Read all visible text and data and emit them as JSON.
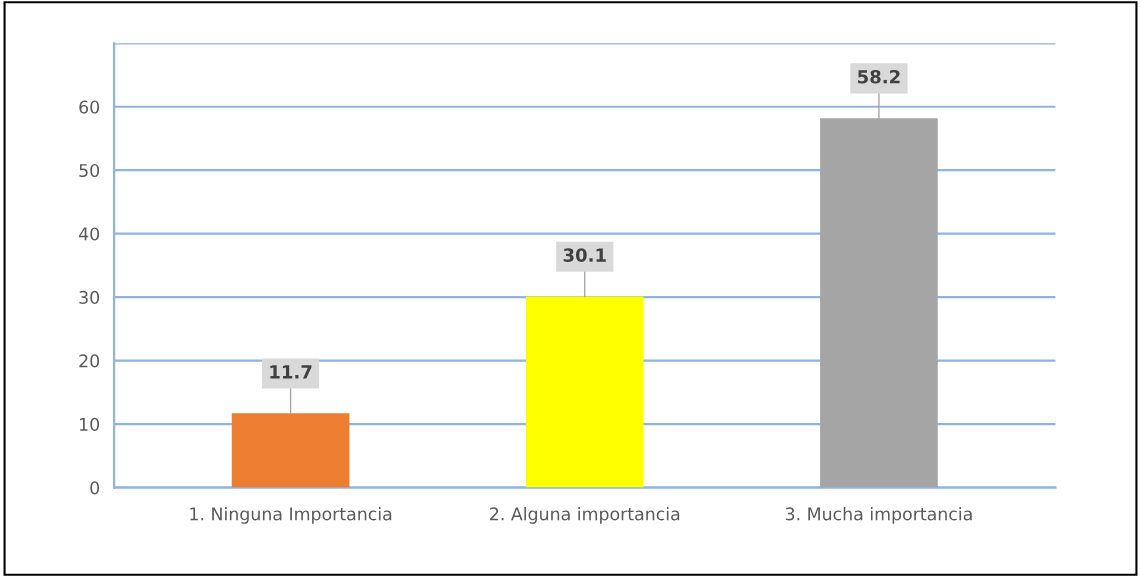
{
  "chart_data": {
    "type": "bar",
    "categories": [
      "1. Ninguna Importancia",
      "2. Alguna importancia",
      "3. Mucha importancia"
    ],
    "values": [
      11.7,
      30.1,
      58.2
    ],
    "colors": [
      "#ed7d31",
      "#ffff00",
      "#a5a5a5"
    ],
    "ylim": [
      0,
      70
    ],
    "yticks": [
      0,
      10,
      20,
      30,
      40,
      50,
      60,
      {
        "value": 70,
        "label": null
      }
    ],
    "grid": "y",
    "data_labels": true
  }
}
